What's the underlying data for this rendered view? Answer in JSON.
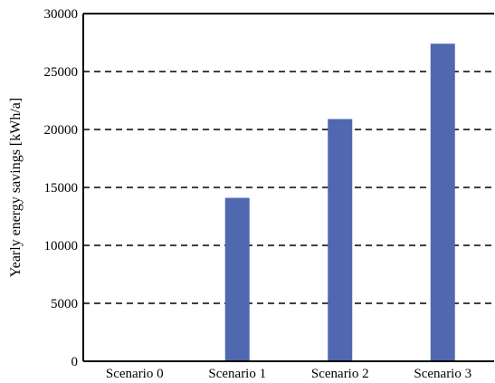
{
  "chart_data": {
    "type": "bar",
    "categories": [
      "Scenario 0",
      "Scenario 1",
      "Scenario 2",
      "Scenario 3"
    ],
    "values": [
      0,
      14100,
      20900,
      27400
    ],
    "ylabel": "Yearly energy savings [kWh/a]",
    "xlabel": "",
    "ylim": [
      0,
      30000
    ],
    "yticks": [
      0,
      5000,
      10000,
      15000,
      20000,
      25000,
      30000
    ],
    "grid": "horizontal dashed",
    "legend": "none",
    "colors": {
      "bar": "#5068B0",
      "axis": "#000000",
      "grid": "#000000"
    }
  }
}
